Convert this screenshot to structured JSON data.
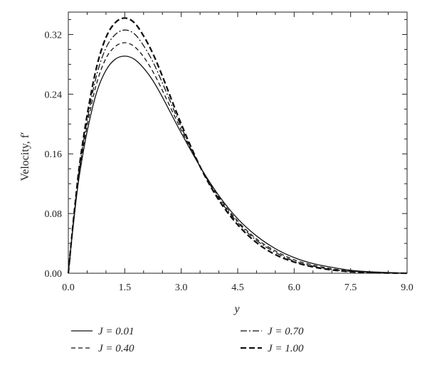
{
  "chart_data": {
    "type": "line",
    "title": "",
    "xlabel": "y",
    "ylabel": "Velocity, f′",
    "xlim": [
      0.0,
      9.0
    ],
    "ylim": [
      0.0,
      0.35
    ],
    "xticks": [
      "0.0",
      "1.5",
      "3.0",
      "4.5",
      "6.0",
      "7.5",
      "9.0"
    ],
    "yticks": [
      "0.00",
      "0.08",
      "0.16",
      "0.24",
      "0.32"
    ],
    "grid": false,
    "legend_position": "bottom",
    "x": [
      0.0,
      0.1,
      0.2,
      0.3,
      0.5,
      0.75,
      1.0,
      1.25,
      1.5,
      1.75,
      2.0,
      2.25,
      2.5,
      3.0,
      3.5,
      4.0,
      4.5,
      5.0,
      5.5,
      6.0,
      6.5,
      7.0,
      7.5,
      8.0,
      8.5,
      9.0
    ],
    "series": [
      {
        "name": "J = 0.01",
        "style": "solid",
        "values": [
          0.0,
          0.05,
          0.095,
          0.133,
          0.19,
          0.242,
          0.272,
          0.287,
          0.291,
          0.287,
          0.275,
          0.258,
          0.236,
          0.188,
          0.143,
          0.104,
          0.073,
          0.05,
          0.033,
          0.021,
          0.013,
          0.008,
          0.004,
          0.002,
          0.001,
          0.0
        ]
      },
      {
        "name": "J = 0.40",
        "style": "dashed",
        "values": [
          0.0,
          0.051,
          0.098,
          0.138,
          0.198,
          0.254,
          0.288,
          0.304,
          0.309,
          0.304,
          0.29,
          0.27,
          0.245,
          0.192,
          0.143,
          0.102,
          0.07,
          0.046,
          0.03,
          0.018,
          0.011,
          0.006,
          0.003,
          0.0015,
          0.0005,
          0.0
        ]
      },
      {
        "name": "J = 0.70",
        "style": "dashdot",
        "values": [
          0.0,
          0.052,
          0.1,
          0.142,
          0.205,
          0.265,
          0.302,
          0.32,
          0.326,
          0.321,
          0.305,
          0.283,
          0.255,
          0.196,
          0.143,
          0.1,
          0.068,
          0.044,
          0.028,
          0.016,
          0.0095,
          0.005,
          0.0025,
          0.001,
          0.0004,
          0.0
        ]
      },
      {
        "name": "J = 1.00",
        "style": "longdash",
        "values": [
          0.0,
          0.053,
          0.102,
          0.146,
          0.212,
          0.276,
          0.316,
          0.336,
          0.342,
          0.336,
          0.318,
          0.294,
          0.264,
          0.2,
          0.143,
          0.098,
          0.065,
          0.041,
          0.025,
          0.015,
          0.0085,
          0.0045,
          0.002,
          0.0008,
          0.0003,
          0.0
        ]
      }
    ]
  }
}
